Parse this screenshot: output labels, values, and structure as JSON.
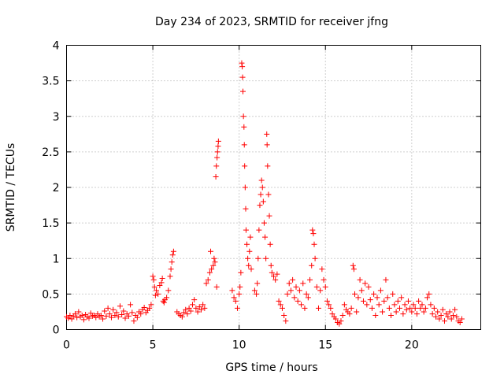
{
  "chart_data": {
    "type": "scatter",
    "title": "Day 234 of 2023, SRMTID for receiver jfng",
    "xlabel": "GPS time / hours",
    "ylabel": "SRMTID / TECUs",
    "xlim": [
      0,
      24
    ],
    "ylim": [
      0,
      4
    ],
    "xticks": [
      0,
      5,
      10,
      15,
      20
    ],
    "yticks": [
      0,
      0.5,
      1,
      1.5,
      2,
      2.5,
      3,
      3.5,
      4
    ],
    "xtick_labels": [
      "0",
      "5",
      "10",
      "15",
      "20"
    ],
    "ytick_labels": [
      "0",
      "0.5",
      "1",
      "1.5",
      "2",
      "2.5",
      "3",
      "3.5",
      "4"
    ],
    "grid": true,
    "marker": "+",
    "color": "#ff0000",
    "series": [
      {
        "name": "SRMTID",
        "points": [
          [
            0.0,
            0.18
          ],
          [
            0.1,
            0.16
          ],
          [
            0.2,
            0.2
          ],
          [
            0.3,
            0.15
          ],
          [
            0.4,
            0.19
          ],
          [
            0.5,
            0.22
          ],
          [
            0.6,
            0.17
          ],
          [
            0.7,
            0.25
          ],
          [
            0.8,
            0.18
          ],
          [
            0.9,
            0.2
          ],
          [
            1.0,
            0.14
          ],
          [
            1.1,
            0.21
          ],
          [
            1.2,
            0.18
          ],
          [
            1.3,
            0.16
          ],
          [
            1.4,
            0.23
          ],
          [
            1.5,
            0.19
          ],
          [
            1.6,
            0.2
          ],
          [
            1.7,
            0.17
          ],
          [
            1.8,
            0.22
          ],
          [
            1.9,
            0.18
          ],
          [
            2.0,
            0.2
          ],
          [
            2.1,
            0.15
          ],
          [
            2.2,
            0.26
          ],
          [
            2.3,
            0.19
          ],
          [
            2.4,
            0.3
          ],
          [
            2.5,
            0.22
          ],
          [
            2.6,
            0.17
          ],
          [
            2.7,
            0.28
          ],
          [
            2.8,
            0.2
          ],
          [
            2.9,
            0.24
          ],
          [
            3.0,
            0.18
          ],
          [
            3.1,
            0.33
          ],
          [
            3.2,
            0.21
          ],
          [
            3.3,
            0.26
          ],
          [
            3.4,
            0.16
          ],
          [
            3.5,
            0.22
          ],
          [
            3.6,
            0.19
          ],
          [
            3.7,
            0.35
          ],
          [
            3.8,
            0.24
          ],
          [
            3.9,
            0.12
          ],
          [
            4.0,
            0.2
          ],
          [
            4.1,
            0.17
          ],
          [
            4.2,
            0.25
          ],
          [
            4.3,
            0.22
          ],
          [
            4.4,
            0.28
          ],
          [
            4.5,
            0.31
          ],
          [
            4.6,
            0.24
          ],
          [
            4.7,
            0.27
          ],
          [
            4.8,
            0.3
          ],
          [
            4.9,
            0.35
          ],
          [
            5.0,
            0.75
          ],
          [
            5.05,
            0.7
          ],
          [
            5.1,
            0.6
          ],
          [
            5.15,
            0.48
          ],
          [
            5.2,
            0.55
          ],
          [
            5.3,
            0.5
          ],
          [
            5.4,
            0.62
          ],
          [
            5.5,
            0.66
          ],
          [
            5.55,
            0.72
          ],
          [
            5.6,
            0.4
          ],
          [
            5.65,
            0.38
          ],
          [
            5.7,
            0.42
          ],
          [
            5.8,
            0.45
          ],
          [
            5.9,
            0.55
          ],
          [
            6.0,
            0.75
          ],
          [
            6.05,
            0.85
          ],
          [
            6.1,
            0.95
          ],
          [
            6.15,
            1.05
          ],
          [
            6.2,
            1.1
          ],
          [
            6.4,
            0.25
          ],
          [
            6.5,
            0.22
          ],
          [
            6.6,
            0.2
          ],
          [
            6.7,
            0.18
          ],
          [
            6.8,
            0.24
          ],
          [
            6.9,
            0.28
          ],
          [
            7.0,
            0.22
          ],
          [
            7.1,
            0.3
          ],
          [
            7.2,
            0.26
          ],
          [
            7.3,
            0.35
          ],
          [
            7.4,
            0.42
          ],
          [
            7.5,
            0.3
          ],
          [
            7.6,
            0.25
          ],
          [
            7.7,
            0.32
          ],
          [
            7.8,
            0.28
          ],
          [
            7.9,
            0.35
          ],
          [
            8.0,
            0.3
          ],
          [
            8.1,
            0.65
          ],
          [
            8.2,
            0.7
          ],
          [
            8.3,
            0.8
          ],
          [
            8.35,
            1.1
          ],
          [
            8.4,
            0.85
          ],
          [
            8.5,
            0.9
          ],
          [
            8.55,
            1.0
          ],
          [
            8.6,
            0.95
          ],
          [
            8.7,
            0.6
          ],
          [
            8.65,
            2.15
          ],
          [
            8.68,
            2.3
          ],
          [
            8.72,
            2.42
          ],
          [
            8.75,
            2.5
          ],
          [
            8.78,
            2.58
          ],
          [
            8.8,
            2.65
          ],
          [
            9.6,
            0.55
          ],
          [
            9.7,
            0.45
          ],
          [
            9.8,
            0.4
          ],
          [
            9.9,
            0.3
          ],
          [
            10.0,
            0.5
          ],
          [
            10.05,
            0.6
          ],
          [
            10.1,
            0.8
          ],
          [
            10.15,
            3.75
          ],
          [
            10.18,
            3.7
          ],
          [
            10.2,
            3.55
          ],
          [
            10.22,
            3.35
          ],
          [
            10.25,
            3.0
          ],
          [
            10.28,
            2.85
          ],
          [
            10.3,
            2.6
          ],
          [
            10.32,
            2.3
          ],
          [
            10.35,
            2.0
          ],
          [
            10.38,
            1.7
          ],
          [
            10.4,
            1.4
          ],
          [
            10.45,
            1.2
          ],
          [
            10.5,
            1.0
          ],
          [
            10.55,
            0.9
          ],
          [
            10.6,
            1.1
          ],
          [
            10.65,
            1.3
          ],
          [
            10.7,
            0.85
          ],
          [
            10.9,
            0.55
          ],
          [
            11.0,
            0.5
          ],
          [
            11.05,
            0.65
          ],
          [
            11.1,
            1.0
          ],
          [
            11.15,
            1.4
          ],
          [
            11.2,
            1.75
          ],
          [
            11.25,
            1.9
          ],
          [
            11.3,
            2.1
          ],
          [
            11.35,
            2.0
          ],
          [
            11.4,
            1.8
          ],
          [
            11.45,
            1.5
          ],
          [
            11.5,
            1.3
          ],
          [
            11.55,
            1.0
          ],
          [
            11.6,
            2.75
          ],
          [
            11.62,
            2.6
          ],
          [
            11.65,
            2.3
          ],
          [
            11.7,
            1.9
          ],
          [
            11.75,
            1.6
          ],
          [
            11.8,
            1.2
          ],
          [
            11.85,
            0.9
          ],
          [
            11.9,
            0.8
          ],
          [
            12.0,
            0.75
          ],
          [
            12.1,
            0.7
          ],
          [
            12.2,
            0.78
          ],
          [
            12.3,
            0.4
          ],
          [
            12.4,
            0.35
          ],
          [
            12.5,
            0.3
          ],
          [
            12.6,
            0.2
          ],
          [
            12.7,
            0.12
          ],
          [
            12.8,
            0.5
          ],
          [
            12.9,
            0.65
          ],
          [
            13.0,
            0.55
          ],
          [
            13.1,
            0.7
          ],
          [
            13.2,
            0.45
          ],
          [
            13.3,
            0.6
          ],
          [
            13.4,
            0.4
          ],
          [
            13.5,
            0.55
          ],
          [
            13.6,
            0.35
          ],
          [
            13.7,
            0.65
          ],
          [
            13.8,
            0.3
          ],
          [
            13.9,
            0.5
          ],
          [
            14.0,
            0.45
          ],
          [
            14.1,
            0.7
          ],
          [
            14.2,
            0.9
          ],
          [
            14.25,
            1.4
          ],
          [
            14.3,
            1.35
          ],
          [
            14.35,
            1.2
          ],
          [
            14.4,
            1.0
          ],
          [
            14.5,
            0.6
          ],
          [
            14.6,
            0.3
          ],
          [
            14.7,
            0.55
          ],
          [
            14.8,
            0.85
          ],
          [
            14.9,
            0.7
          ],
          [
            15.0,
            0.6
          ],
          [
            15.1,
            0.4
          ],
          [
            15.2,
            0.35
          ],
          [
            15.3,
            0.3
          ],
          [
            15.4,
            0.22
          ],
          [
            15.5,
            0.18
          ],
          [
            15.6,
            0.15
          ],
          [
            15.7,
            0.1
          ],
          [
            15.8,
            0.08
          ],
          [
            15.9,
            0.12
          ],
          [
            16.0,
            0.2
          ],
          [
            16.1,
            0.35
          ],
          [
            16.2,
            0.28
          ],
          [
            16.3,
            0.25
          ],
          [
            16.4,
            0.22
          ],
          [
            16.5,
            0.3
          ],
          [
            16.6,
            0.9
          ],
          [
            16.65,
            0.85
          ],
          [
            16.7,
            0.5
          ],
          [
            16.8,
            0.25
          ],
          [
            16.9,
            0.45
          ],
          [
            17.0,
            0.7
          ],
          [
            17.1,
            0.55
          ],
          [
            17.2,
            0.4
          ],
          [
            17.3,
            0.65
          ],
          [
            17.4,
            0.35
          ],
          [
            17.5,
            0.6
          ],
          [
            17.6,
            0.42
          ],
          [
            17.7,
            0.3
          ],
          [
            17.8,
            0.5
          ],
          [
            17.9,
            0.2
          ],
          [
            18.0,
            0.45
          ],
          [
            18.1,
            0.35
          ],
          [
            18.2,
            0.55
          ],
          [
            18.3,
            0.25
          ],
          [
            18.4,
            0.4
          ],
          [
            18.5,
            0.7
          ],
          [
            18.6,
            0.45
          ],
          [
            18.7,
            0.3
          ],
          [
            18.8,
            0.2
          ],
          [
            18.9,
            0.5
          ],
          [
            19.0,
            0.35
          ],
          [
            19.1,
            0.25
          ],
          [
            19.2,
            0.4
          ],
          [
            19.3,
            0.3
          ],
          [
            19.4,
            0.45
          ],
          [
            19.5,
            0.22
          ],
          [
            19.6,
            0.35
          ],
          [
            19.7,
            0.28
          ],
          [
            19.8,
            0.4
          ],
          [
            19.9,
            0.3
          ],
          [
            20.0,
            0.25
          ],
          [
            20.1,
            0.35
          ],
          [
            20.2,
            0.3
          ],
          [
            20.3,
            0.22
          ],
          [
            20.4,
            0.4
          ],
          [
            20.5,
            0.3
          ],
          [
            20.6,
            0.35
          ],
          [
            20.7,
            0.25
          ],
          [
            20.8,
            0.3
          ],
          [
            20.9,
            0.45
          ],
          [
            21.0,
            0.5
          ],
          [
            21.1,
            0.35
          ],
          [
            21.2,
            0.22
          ],
          [
            21.3,
            0.3
          ],
          [
            21.4,
            0.18
          ],
          [
            21.5,
            0.25
          ],
          [
            21.6,
            0.15
          ],
          [
            21.7,
            0.2
          ],
          [
            21.8,
            0.28
          ],
          [
            21.9,
            0.12
          ],
          [
            22.0,
            0.22
          ],
          [
            22.1,
            0.18
          ],
          [
            22.2,
            0.25
          ],
          [
            22.3,
            0.15
          ],
          [
            22.4,
            0.2
          ],
          [
            22.5,
            0.28
          ],
          [
            22.6,
            0.18
          ],
          [
            22.7,
            0.12
          ],
          [
            22.8,
            0.1
          ],
          [
            22.9,
            0.15
          ]
        ]
      }
    ]
  }
}
